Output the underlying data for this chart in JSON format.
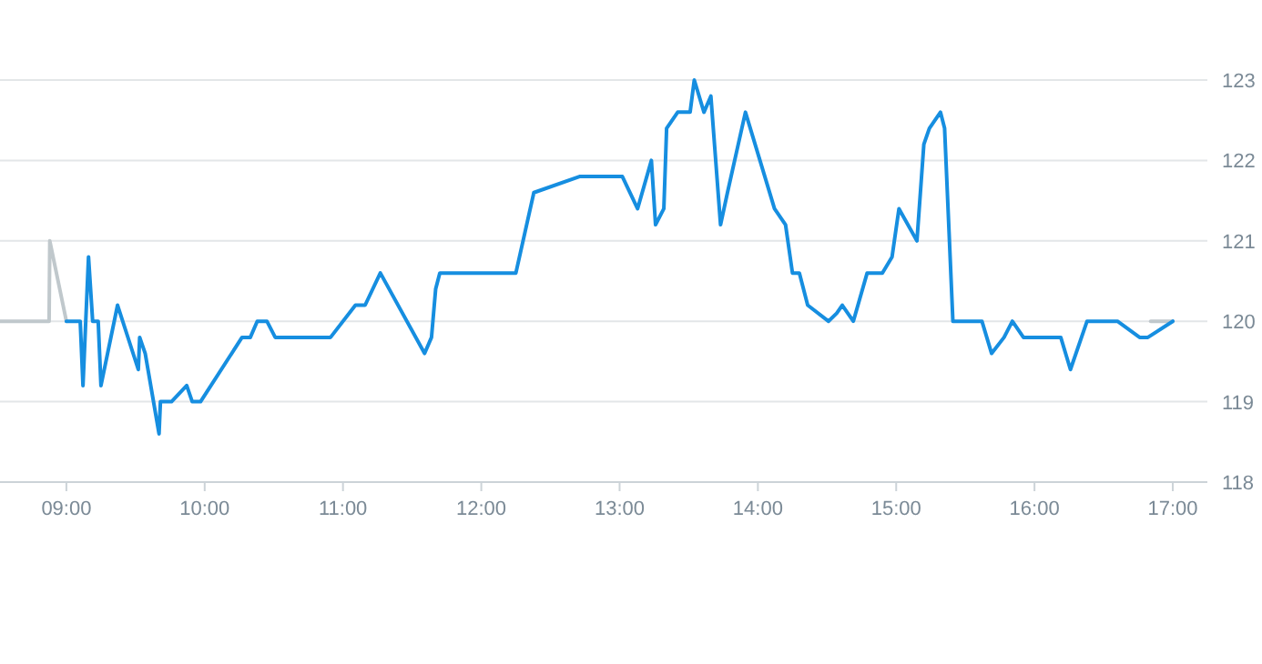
{
  "chart_data": {
    "type": "line",
    "x": [
      9.0,
      9.1,
      9.12,
      9.16,
      9.19,
      9.23,
      9.25,
      9.37,
      9.52,
      9.53,
      9.57,
      9.67,
      9.68,
      9.76,
      9.87,
      9.91,
      9.97,
      10.27,
      10.33,
      10.38,
      10.45,
      10.51,
      10.91,
      11.09,
      11.16,
      11.27,
      11.59,
      11.64,
      11.67,
      11.7,
      12.25,
      12.38,
      12.71,
      13.02,
      13.13,
      13.23,
      13.26,
      13.32,
      13.34,
      13.42,
      13.51,
      13.54,
      13.61,
      13.66,
      13.73,
      13.78,
      13.91,
      14.12,
      14.2,
      14.25,
      14.3,
      14.36,
      14.51,
      14.57,
      14.61,
      14.69,
      14.79,
      14.9,
      14.97,
      15.02,
      15.15,
      15.2,
      15.24,
      15.32,
      15.35,
      15.41,
      15.62,
      15.69,
      15.78,
      15.84,
      15.92,
      16.19,
      16.26,
      16.38,
      16.6,
      16.76,
      16.82,
      17.0
    ],
    "series": [
      {
        "color": "#c0c8cc",
        "x": [
          8.52,
          8.875,
          8.88,
          9.0
        ],
        "values": [
          120,
          120,
          121,
          120
        ]
      },
      {
        "color": "#c0c8cc",
        "x": [
          16.84,
          17.0
        ],
        "values": [
          120,
          120
        ]
      },
      {
        "color": "#168ee0",
        "values": [
          120,
          120,
          119.2,
          120.8,
          120,
          120,
          119.2,
          120.2,
          119.4,
          119.8,
          119.6,
          118.6,
          119.0,
          119.0,
          119.2,
          119.0,
          119.0,
          119.8,
          119.8,
          120,
          120,
          119.8,
          119.8,
          120.2,
          120.2,
          120.6,
          119.6,
          119.8,
          120.4,
          120.6,
          120.6,
          121.6,
          121.8,
          121.8,
          121.4,
          122.0,
          121.2,
          121.4,
          122.4,
          122.6,
          122.6,
          123.0,
          122.6,
          122.8,
          121.2,
          121.6,
          122.6,
          121.4,
          121.2,
          120.6,
          120.6,
          120.2,
          120,
          120.1,
          120.2,
          120,
          120.6,
          120.6,
          120.8,
          121.4,
          121.0,
          122.2,
          122.4,
          122.6,
          122.4,
          120,
          120,
          119.6,
          119.8,
          120,
          119.8,
          119.8,
          119.4,
          120,
          120,
          119.8,
          119.8,
          120
        ]
      }
    ],
    "xlim": [
      8.52,
      17.25
    ],
    "xticks": [
      {
        "value": 9,
        "label": "09:00"
      },
      {
        "value": 10,
        "label": "10:00"
      },
      {
        "value": 11,
        "label": "11:00"
      },
      {
        "value": 12,
        "label": "12:00"
      },
      {
        "value": 13,
        "label": "13:00"
      },
      {
        "value": 14,
        "label": "14:00"
      },
      {
        "value": 15,
        "label": "15:00"
      },
      {
        "value": 16,
        "label": "16:00"
      },
      {
        "value": 17,
        "label": "17:00"
      }
    ],
    "ylim": [
      118,
      123
    ],
    "yticks": [
      118,
      119,
      120,
      121,
      122,
      123
    ],
    "grid": "y",
    "marker": "none",
    "line_style": "solid"
  }
}
